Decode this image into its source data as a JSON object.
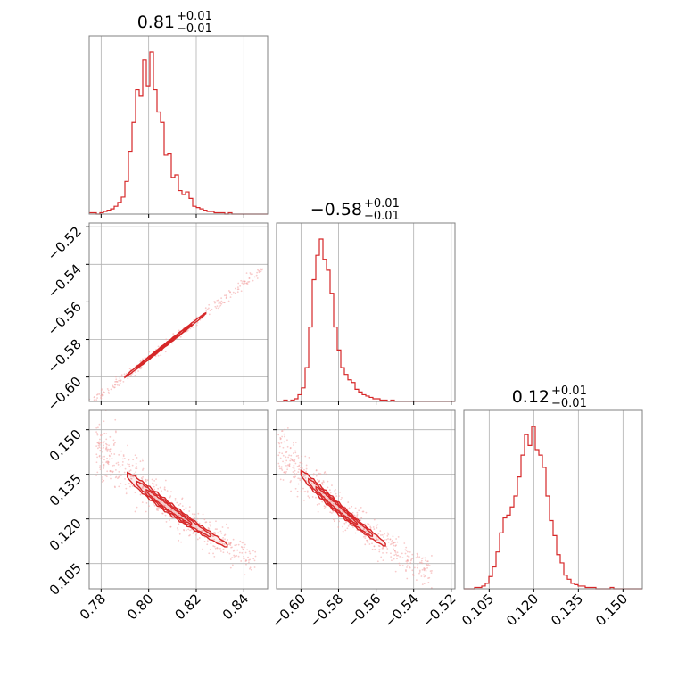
{
  "colors": {
    "series": "#d62728",
    "scatter": "#f2a0a0",
    "grid": "#b0b0b0",
    "frame": "#808080"
  },
  "chart_data": {
    "type": "corner",
    "grid": true,
    "params": [
      {
        "title_value": "0.81",
        "title_plus": "+0.01",
        "title_minus": "−0.01",
        "range": [
          0.775,
          0.85
        ],
        "ticks": [
          0.78,
          0.8,
          0.82,
          0.84
        ],
        "tick_labels": [
          "0.78",
          "0.80",
          "0.82",
          "0.84"
        ]
      },
      {
        "title_value": "−0.58",
        "title_plus": "+0.01",
        "title_minus": "−0.01",
        "range": [
          -0.613,
          -0.518
        ],
        "ticks": [
          -0.6,
          -0.58,
          -0.56,
          -0.54,
          -0.52
        ],
        "tick_labels": [
          "−0.60",
          "−0.58",
          "−0.56",
          "−0.54",
          "−0.52"
        ]
      },
      {
        "title_value": "0.12",
        "title_plus": "+0.01",
        "title_minus": "−0.01",
        "range": [
          0.0965,
          0.1565
        ],
        "ticks": [
          0.105,
          0.12,
          0.135,
          0.15
        ],
        "tick_labels": [
          "0.105",
          "0.120",
          "0.135",
          "0.150"
        ]
      }
    ],
    "histograms": [
      {
        "param": 0,
        "edges_start": 0.775,
        "bin_width": 0.0015,
        "counts": [
          1,
          1,
          0,
          1,
          2,
          3,
          4,
          6,
          9,
          13,
          25,
          48,
          70,
          95,
          90,
          118,
          98,
          124,
          95,
          78,
          70,
          45,
          46,
          28,
          30,
          18,
          15,
          17,
          12,
          6,
          5,
          4,
          3,
          2,
          2,
          1,
          1,
          1,
          0,
          1,
          0,
          0,
          0,
          0,
          0,
          0,
          0,
          0,
          0,
          0
        ]
      },
      {
        "param": 1,
        "edges_start": -0.613,
        "bin_width": 0.0019,
        "counts": [
          0,
          0,
          1,
          0,
          1,
          2,
          5,
          10,
          25,
          55,
          90,
          108,
          120,
          105,
          97,
          80,
          55,
          38,
          25,
          20,
          16,
          14,
          9,
          7,
          5,
          4,
          3,
          2,
          2,
          1,
          1,
          0,
          1,
          0,
          0,
          0,
          0,
          0,
          0,
          0,
          0,
          0,
          0,
          0,
          0,
          0,
          0,
          0,
          0,
          0
        ]
      },
      {
        "param": 2,
        "edges_start": 0.0965,
        "bin_width": 0.0012,
        "counts": [
          0,
          0,
          0,
          1,
          1,
          2,
          4,
          9,
          16,
          27,
          41,
          52,
          54,
          60,
          68,
          82,
          98,
          113,
          105,
          119,
          102,
          98,
          89,
          68,
          50,
          39,
          25,
          19,
          10,
          7,
          4,
          3,
          2,
          2,
          1,
          1,
          1,
          0,
          0,
          0,
          0,
          1,
          0,
          0,
          0,
          0,
          0,
          0,
          0,
          0
        ]
      }
    ],
    "correlations": [
      {
        "x_param": 0,
        "y_param": 1,
        "relation": "y = -0.58 + 1.0*(x - 0.81)",
        "thin_band": true
      },
      {
        "x_param": 0,
        "y_param": 2,
        "relation": "curved decreasing band",
        "thin_band": false
      },
      {
        "x_param": 1,
        "y_param": 2,
        "relation": "curved decreasing band",
        "thin_band": false
      }
    ]
  }
}
